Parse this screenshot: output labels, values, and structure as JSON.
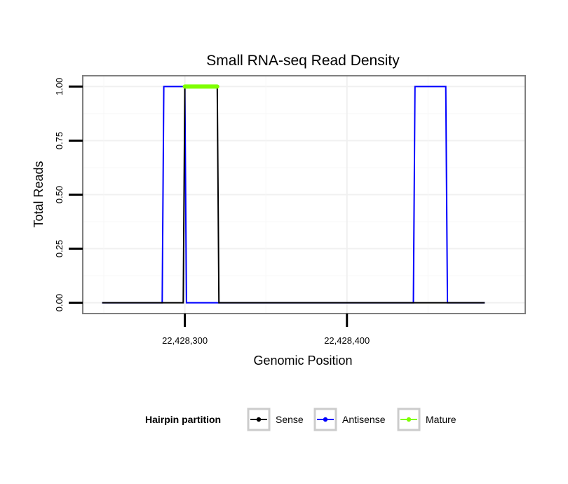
{
  "chart_data": {
    "type": "line",
    "title": "Small RNA-seq Read Density",
    "xlabel": "Genomic Position",
    "ylabel": "Total Reads",
    "xlim": [
      22428237,
      22428510
    ],
    "ylim": [
      -0.05,
      1.05
    ],
    "x_ticks": [
      {
        "value": 22428300,
        "label": "22,428,300"
      },
      {
        "value": 22428400,
        "label": "22,428,400"
      }
    ],
    "y_ticks": [
      {
        "value": 0.0,
        "label": "0.00"
      },
      {
        "value": 0.25,
        "label": "0.25"
      },
      {
        "value": 0.5,
        "label": "0.50"
      },
      {
        "value": 0.75,
        "label": "0.75"
      },
      {
        "value": 1.0,
        "label": "1.00"
      }
    ],
    "grid": true,
    "legend": {
      "title": "Hairpin partition",
      "position": "bottom",
      "entries": [
        {
          "name": "Sense",
          "color": "#000000"
        },
        {
          "name": "Antisense",
          "color": "#0000ff"
        },
        {
          "name": "Mature",
          "color": "#7fff00"
        }
      ]
    },
    "series": [
      {
        "name": "Antisense",
        "color": "#0000ff",
        "x": [
          22428249,
          22428286,
          22428287,
          22428300,
          22428301,
          22428321,
          22428322,
          22428441,
          22428442,
          22428461,
          22428462,
          22428485
        ],
        "y": [
          0,
          0,
          1,
          1,
          0,
          0,
          0,
          0,
          1,
          1,
          0,
          0
        ]
      },
      {
        "name": "Sense",
        "color": "#000000",
        "x": [
          22428249,
          22428299,
          22428300,
          22428320,
          22428321,
          22428485
        ],
        "y": [
          0,
          0,
          1,
          1,
          0,
          0
        ]
      },
      {
        "name": "Mature",
        "color": "#7fff00",
        "x": [
          22428300,
          22428320
        ],
        "y": [
          1,
          1
        ]
      }
    ]
  }
}
